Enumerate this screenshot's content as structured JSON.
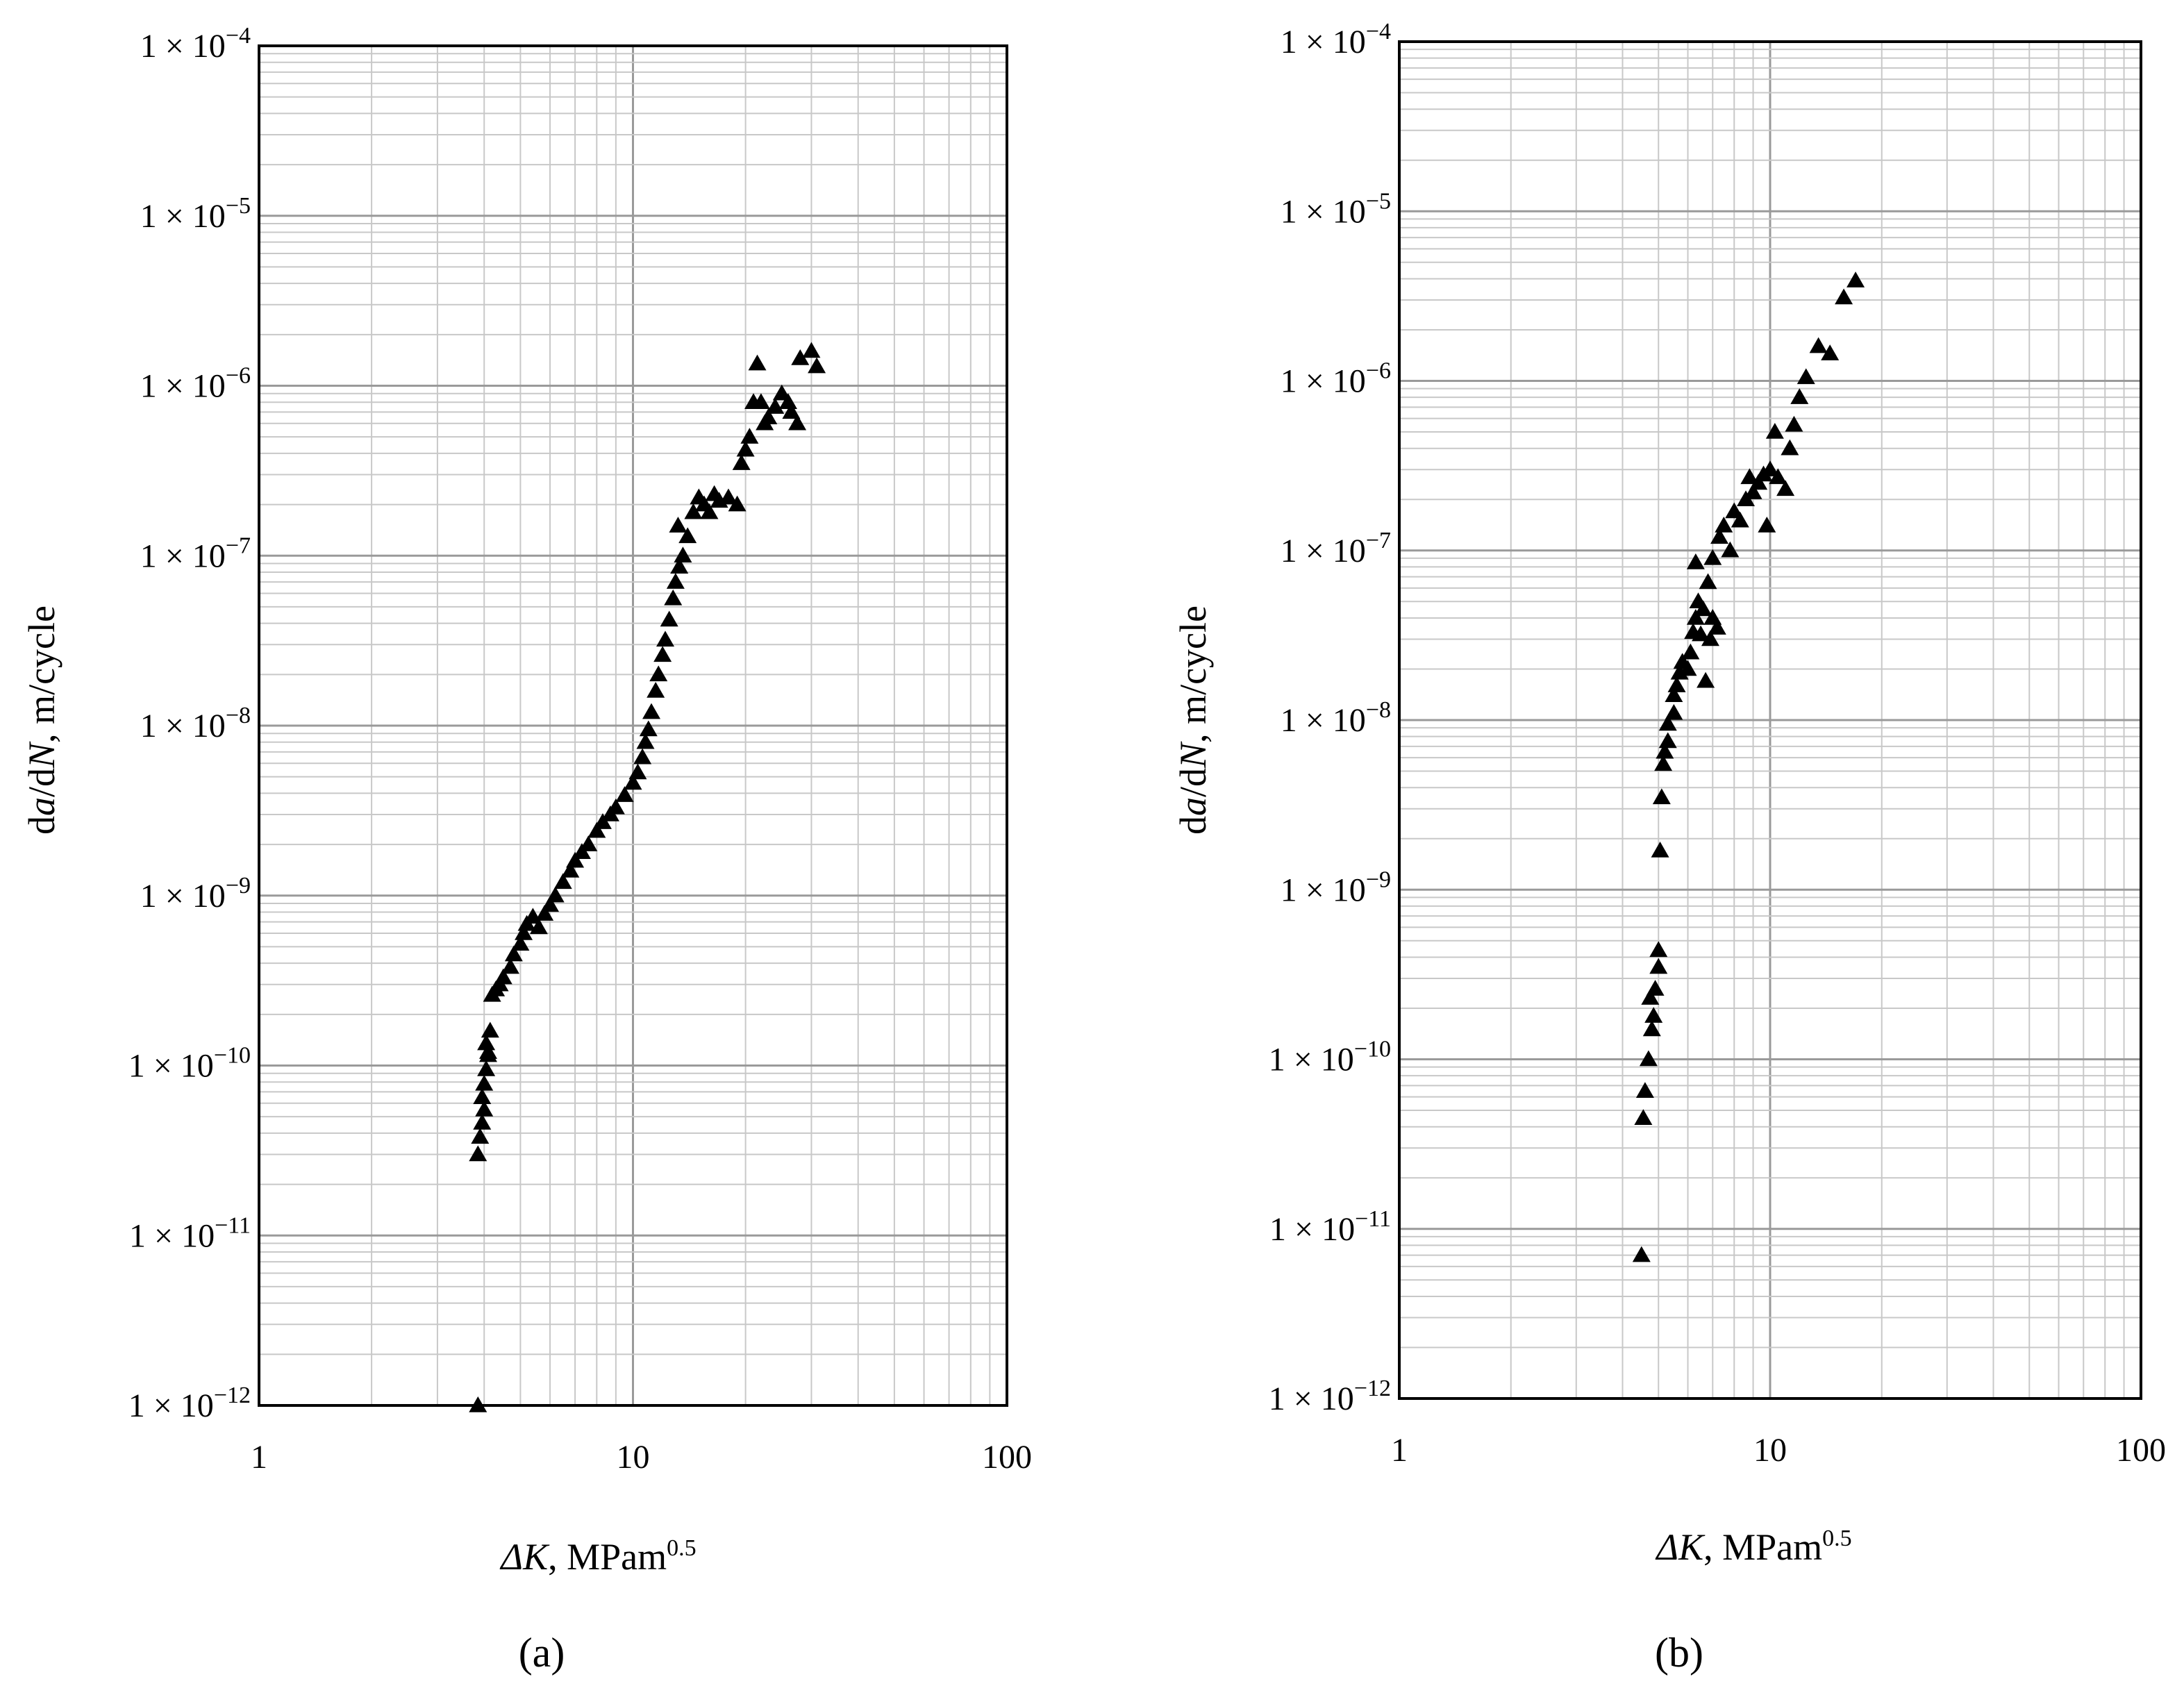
{
  "chart_data": [
    {
      "panel": "(a)",
      "type": "scatter",
      "marker": "triangle",
      "xlabel": "ΔK, MPam^0.5",
      "ylabel": "da/dN, m/cycle",
      "xscale": "log",
      "yscale": "log",
      "xlim": [
        1,
        100
      ],
      "ylim": [
        1e-12,
        0.0001
      ],
      "grid": true,
      "x_ticks": [
        "1",
        "10",
        "100"
      ],
      "y_ticks": [
        "1 × 10⁻¹²",
        "1 × 10⁻¹¹",
        "1 × 10⁻¹⁰",
        "1 × 10⁻⁹",
        "1 × 10⁻⁸",
        "1 × 10⁻⁷",
        "1 × 10⁻⁶",
        "1 × 10⁻⁵",
        "1 × 10⁻⁴"
      ],
      "points": [
        [
          3.85,
          1e-12
        ],
        [
          3.85,
          3e-11
        ],
        [
          3.9,
          3.8e-11
        ],
        [
          3.95,
          4.6e-11
        ],
        [
          4.0,
          5.5e-11
        ],
        [
          3.95,
          6.5e-11
        ],
        [
          4.0,
          7.8e-11
        ],
        [
          4.05,
          9.5e-11
        ],
        [
          4.1,
          1.15e-10
        ],
        [
          4.05,
          1.35e-10
        ],
        [
          4.15,
          1.6e-10
        ],
        [
          4.1,
          1.2e-10
        ],
        [
          4.2,
          2.6e-10
        ],
        [
          4.3,
          2.8e-10
        ],
        [
          4.4,
          3e-10
        ],
        [
          4.5,
          3.3e-10
        ],
        [
          4.7,
          3.8e-10
        ],
        [
          4.8,
          4.5e-10
        ],
        [
          5.0,
          5.2e-10
        ],
        [
          5.1,
          6e-10
        ],
        [
          5.2,
          6.8e-10
        ],
        [
          5.4,
          7.5e-10
        ],
        [
          5.6,
          6.5e-10
        ],
        [
          5.8,
          7.8e-10
        ],
        [
          6.0,
          8.8e-10
        ],
        [
          6.2,
          1e-09
        ],
        [
          6.5,
          1.2e-09
        ],
        [
          6.8,
          1.4e-09
        ],
        [
          7.0,
          1.6e-09
        ],
        [
          7.3,
          1.8e-09
        ],
        [
          7.6,
          2e-09
        ],
        [
          8.0,
          2.4e-09
        ],
        [
          8.3,
          2.7e-09
        ],
        [
          8.7,
          3e-09
        ],
        [
          9.0,
          3.3e-09
        ],
        [
          9.5,
          3.9e-09
        ],
        [
          10.0,
          4.6e-09
        ],
        [
          10.3,
          5.3e-09
        ],
        [
          10.6,
          6.5e-09
        ],
        [
          10.8,
          8e-09
        ],
        [
          11.0,
          9.5e-09
        ],
        [
          11.2,
          1.2e-08
        ],
        [
          11.5,
          1.6e-08
        ],
        [
          11.7,
          2e-08
        ],
        [
          12.0,
          2.6e-08
        ],
        [
          12.2,
          3.2e-08
        ],
        [
          12.5,
          4.2e-08
        ],
        [
          12.8,
          5.6e-08
        ],
        [
          13.0,
          7e-08
        ],
        [
          13.3,
          8.6e-08
        ],
        [
          13.6,
          1e-07
        ],
        [
          13.2,
          1.5e-07
        ],
        [
          14.0,
          1.3e-07
        ],
        [
          14.5,
          1.8e-07
        ],
        [
          15.0,
          2.2e-07
        ],
        [
          15.5,
          2e-07
        ],
        [
          16.0,
          1.8e-07
        ],
        [
          16.5,
          2.3e-07
        ],
        [
          17.0,
          2.1e-07
        ],
        [
          18.0,
          2.2e-07
        ],
        [
          19.0,
          2e-07
        ],
        [
          19.5,
          3.5e-07
        ],
        [
          20.0,
          4.2e-07
        ],
        [
          20.5,
          5e-07
        ],
        [
          21.0,
          8e-07
        ],
        [
          21.5,
          1.35e-06
        ],
        [
          22.0,
          8e-07
        ],
        [
          22.5,
          6e-07
        ],
        [
          23.0,
          6.5e-07
        ],
        [
          24.0,
          7.5e-07
        ],
        [
          25.0,
          9e-07
        ],
        [
          26.0,
          8e-07
        ],
        [
          26.5,
          7e-07
        ],
        [
          27.5,
          6e-07
        ],
        [
          28.0,
          1.45e-06
        ],
        [
          30.0,
          1.6e-06
        ],
        [
          31.0,
          1.3e-06
        ]
      ]
    },
    {
      "panel": "(b)",
      "type": "scatter",
      "marker": "triangle",
      "xlabel": "ΔK, MPam^0.5",
      "ylabel": "da/dN, m/cycle",
      "xscale": "log",
      "yscale": "log",
      "xlim": [
        1,
        100
      ],
      "ylim": [
        1e-12,
        0.0001
      ],
      "grid": true,
      "x_ticks": [
        "1",
        "10",
        "100"
      ],
      "y_ticks": [
        "1 × 10⁻¹²",
        "1 × 10⁻¹¹",
        "1 × 10⁻¹⁰",
        "1 × 10⁻⁹",
        "1 × 10⁻⁸",
        "1 × 10⁻⁷",
        "1 × 10⁻⁶",
        "1 × 10⁻⁵",
        "1 × 10⁻⁴"
      ],
      "points": [
        [
          4.5,
          7e-12
        ],
        [
          4.55,
          4.5e-11
        ],
        [
          4.6,
          6.5e-11
        ],
        [
          4.7,
          1e-10
        ],
        [
          4.8,
          1.5e-10
        ],
        [
          4.85,
          1.8e-10
        ],
        [
          4.75,
          2.3e-10
        ],
        [
          4.9,
          2.6e-10
        ],
        [
          5.0,
          3.5e-10
        ],
        [
          5.0,
          4.4e-10
        ],
        [
          5.05,
          1.7e-09
        ],
        [
          5.1,
          3.5e-09
        ],
        [
          5.15,
          5.5e-09
        ],
        [
          5.2,
          6.5e-09
        ],
        [
          5.3,
          7.5e-09
        ],
        [
          5.3,
          9.5e-09
        ],
        [
          5.5,
          1.1e-08
        ],
        [
          5.5,
          1.4e-08
        ],
        [
          5.6,
          1.6e-08
        ],
        [
          5.7,
          1.9e-08
        ],
        [
          5.8,
          2.2e-08
        ],
        [
          6.0,
          2e-08
        ],
        [
          6.1,
          2.5e-08
        ],
        [
          6.2,
          3.3e-08
        ],
        [
          6.3,
          4e-08
        ],
        [
          6.4,
          5e-08
        ],
        [
          6.3,
          8.5e-08
        ],
        [
          6.5,
          3.2e-08
        ],
        [
          6.6,
          4.5e-08
        ],
        [
          6.8,
          6.5e-08
        ],
        [
          6.7,
          1.7e-08
        ],
        [
          6.9,
          3e-08
        ],
        [
          7.0,
          4e-08
        ],
        [
          7.2,
          3.5e-08
        ],
        [
          7.0,
          9e-08
        ],
        [
          7.3,
          1.2e-07
        ],
        [
          7.5,
          1.4e-07
        ],
        [
          7.8,
          1e-07
        ],
        [
          8.0,
          1.7e-07
        ],
        [
          8.3,
          1.5e-07
        ],
        [
          8.6,
          2e-07
        ],
        [
          8.8,
          2.7e-07
        ],
        [
          9.0,
          2.2e-07
        ],
        [
          9.3,
          2.5e-07
        ],
        [
          9.6,
          2.8e-07
        ],
        [
          9.8,
          1.4e-07
        ],
        [
          10.0,
          3e-07
        ],
        [
          10.3,
          5e-07
        ],
        [
          10.5,
          2.7e-07
        ],
        [
          11.0,
          2.3e-07
        ],
        [
          11.3,
          4e-07
        ],
        [
          11.6,
          5.5e-07
        ],
        [
          12.0,
          8e-07
        ],
        [
          12.5,
          1.05e-06
        ],
        [
          13.5,
          1.6e-06
        ],
        [
          14.5,
          1.45e-06
        ],
        [
          15.8,
          3.1e-06
        ],
        [
          17.0,
          3.9e-06
        ]
      ]
    }
  ],
  "panels": {
    "a": {
      "label": "(a)",
      "xlabel_italic": "ΔK",
      "xlabel_rest": ", MPam",
      "xlabel_sup": "0.5",
      "ylabel_d1": "d",
      "ylabel_a": "a",
      "ylabel_mid": "/d",
      "ylabel_N": "N",
      "ylabel_rest": ", m/cycle"
    },
    "b": {
      "label": "(b)",
      "xlabel_italic": "ΔK",
      "xlabel_rest": ", MPam",
      "xlabel_sup": "0.5",
      "ylabel_d1": "d",
      "ylabel_a": "a",
      "ylabel_mid": "/d",
      "ylabel_N": "N",
      "ylabel_rest": ", m/cycle"
    }
  },
  "tick_base": "1 × 10",
  "y_exponents": [
    "−12",
    "−11",
    "−10",
    "−9",
    "−8",
    "−7",
    "−6",
    "−5",
    "−4"
  ],
  "x_tick_labels": [
    "1",
    "10",
    "100"
  ],
  "colors": {
    "marker": "#000000",
    "minor_grid": "#c8c8c8",
    "major_grid": "#9a9a9a",
    "frame": "#000000"
  }
}
